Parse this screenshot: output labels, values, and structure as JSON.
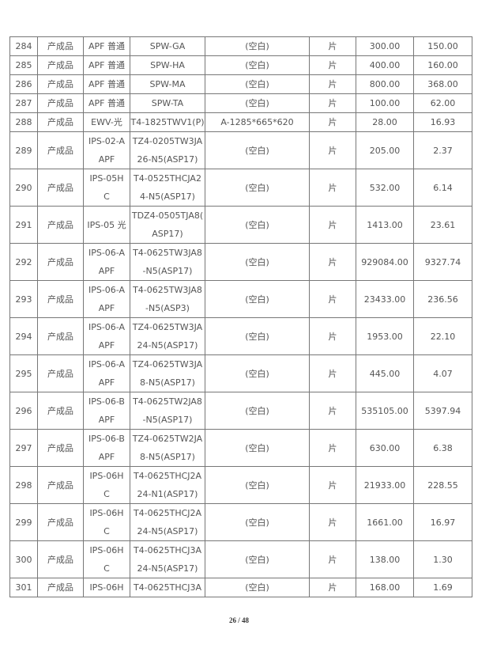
{
  "rows": [
    {
      "no": "284",
      "type": "产成品",
      "series": [
        "APF 普通"
      ],
      "model": [
        "SPW-GA"
      ],
      "spec": "(空白)",
      "unit": "片",
      "qty": "300.00",
      "amount": "150.00"
    },
    {
      "no": "285",
      "type": "产成品",
      "series": [
        "APF 普通"
      ],
      "model": [
        "SPW-HA"
      ],
      "spec": "(空白)",
      "unit": "片",
      "qty": "400.00",
      "amount": "160.00"
    },
    {
      "no": "286",
      "type": "产成品",
      "series": [
        "APF 普通"
      ],
      "model": [
        "SPW-MA"
      ],
      "spec": "(空白)",
      "unit": "片",
      "qty": "800.00",
      "amount": "368.00"
    },
    {
      "no": "287",
      "type": "产成品",
      "series": [
        "APF 普通"
      ],
      "model": [
        "SPW-TA"
      ],
      "spec": "(空白)",
      "unit": "片",
      "qty": "100.00",
      "amount": "62.00"
    },
    {
      "no": "288",
      "type": "产成品",
      "series": [
        "EWV-光"
      ],
      "model": [
        "T4-1825TWV1(P)"
      ],
      "spec": "A-1285*665*620",
      "unit": "片",
      "qty": "28.00",
      "amount": "16.93"
    },
    {
      "no": "289",
      "type": "产成品",
      "series": [
        "IPS-02-A",
        "APF"
      ],
      "model": [
        "TZ4-0205TW3JA",
        "26-N5(ASP17)"
      ],
      "spec": "(空白)",
      "unit": "片",
      "qty": "205.00",
      "amount": "2.37"
    },
    {
      "no": "290",
      "type": "产成品",
      "series": [
        "IPS-05H",
        "C"
      ],
      "model": [
        "T4-0525THCJA2",
        "4-N5(ASP17)"
      ],
      "spec": "(空白)",
      "unit": "片",
      "qty": "532.00",
      "amount": "6.14"
    },
    {
      "no": "291",
      "type": "产成品",
      "series": [
        "IPS-05 光"
      ],
      "model": [
        "TDZ4-0505TJA8(",
        "ASP17)"
      ],
      "spec": "(空白)",
      "unit": "片",
      "qty": "1413.00",
      "amount": "23.61"
    },
    {
      "no": "292",
      "type": "产成品",
      "series": [
        "IPS-06-A",
        "APF"
      ],
      "model": [
        "T4-0625TW3JA8",
        "-N5(ASP17)"
      ],
      "spec": "(空白)",
      "unit": "片",
      "qty": "929084.00",
      "amount": "9327.74"
    },
    {
      "no": "293",
      "type": "产成品",
      "series": [
        "IPS-06-A",
        "APF"
      ],
      "model": [
        "T4-0625TW3JA8",
        "-N5(ASP3)"
      ],
      "spec": "(空白)",
      "unit": "片",
      "qty": "23433.00",
      "amount": "236.56"
    },
    {
      "no": "294",
      "type": "产成品",
      "series": [
        "IPS-06-A",
        "APF"
      ],
      "model": [
        "TZ4-0625TW3JA",
        "24-N5(ASP17)"
      ],
      "spec": "(空白)",
      "unit": "片",
      "qty": "1953.00",
      "amount": "22.10"
    },
    {
      "no": "295",
      "type": "产成品",
      "series": [
        "IPS-06-A",
        "APF"
      ],
      "model": [
        "TZ4-0625TW3JA",
        "8-N5(ASP17)"
      ],
      "spec": "(空白)",
      "unit": "片",
      "qty": "445.00",
      "amount": "4.07"
    },
    {
      "no": "296",
      "type": "产成品",
      "series": [
        "IPS-06-B",
        "APF"
      ],
      "model": [
        "T4-0625TW2JA8",
        "-N5(ASP17)"
      ],
      "spec": "(空白)",
      "unit": "片",
      "qty": "535105.00",
      "amount": "5397.94"
    },
    {
      "no": "297",
      "type": "产成品",
      "series": [
        "IPS-06-B",
        "APF"
      ],
      "model": [
        "TZ4-0625TW2JA",
        "8-N5(ASP17)"
      ],
      "spec": "(空白)",
      "unit": "片",
      "qty": "630.00",
      "amount": "6.38"
    },
    {
      "no": "298",
      "type": "产成品",
      "series": [
        "IPS-06H",
        "C"
      ],
      "model": [
        "T4-0625THCJ2A",
        "24-N1(ASP17)"
      ],
      "spec": "(空白)",
      "unit": "片",
      "qty": "21933.00",
      "amount": "228.55"
    },
    {
      "no": "299",
      "type": "产成品",
      "series": [
        "IPS-06H",
        "C"
      ],
      "model": [
        "T4-0625THCJ2A",
        "24-N5(ASP17)"
      ],
      "spec": "(空白)",
      "unit": "片",
      "qty": "1661.00",
      "amount": "16.97"
    },
    {
      "no": "300",
      "type": "产成品",
      "series": [
        "IPS-06H",
        "C"
      ],
      "model": [
        "T4-0625THCJ3A",
        "24-N5(ASP17)"
      ],
      "spec": "(空白)",
      "unit": "片",
      "qty": "138.00",
      "amount": "1.30"
    },
    {
      "no": "301",
      "type": "产成品",
      "series": [
        "IPS-06H"
      ],
      "model": [
        "T4-0625THCJ3A"
      ],
      "spec": "(空白)",
      "unit": "片",
      "qty": "168.00",
      "amount": "1.69"
    }
  ],
  "footer": {
    "page": "26 / 48"
  }
}
